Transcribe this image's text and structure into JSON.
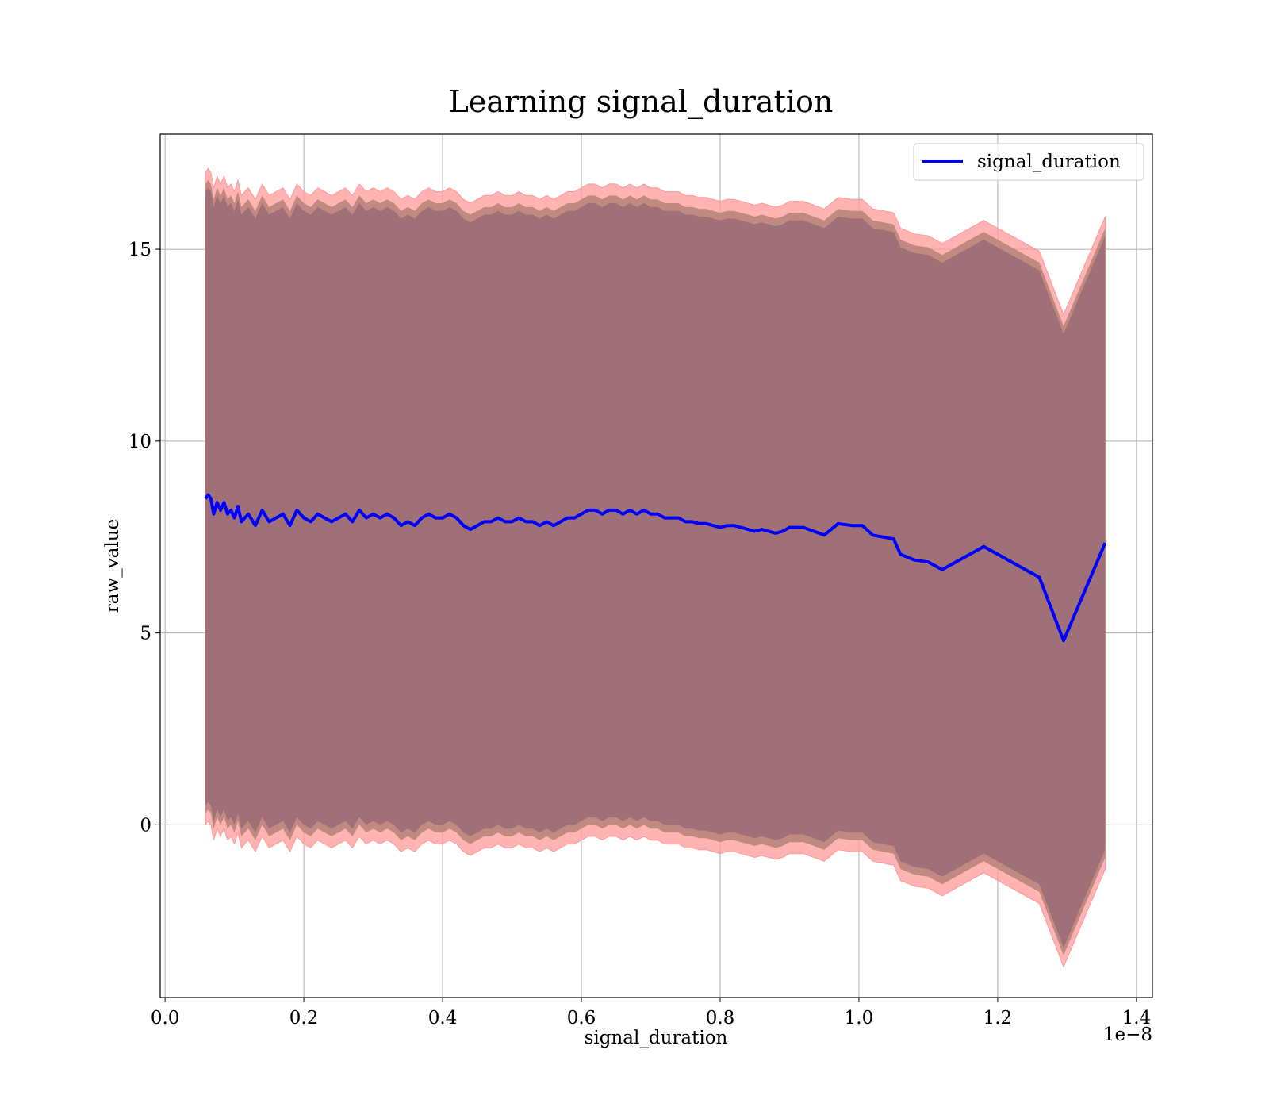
{
  "chart_data": {
    "type": "line",
    "title": "Learning signal_duration",
    "xlabel": "signal_duration",
    "ylabel": "raw_value",
    "x_offset_text": "1e−8",
    "xlim": [
      -0.007,
      1.423
    ],
    "ylim": [
      -4.5,
      18.0
    ],
    "x_ticks": [
      0.0,
      0.2,
      0.4,
      0.6,
      0.8,
      1.0,
      1.2,
      1.4
    ],
    "x_tick_labels": [
      "0.0",
      "0.2",
      "0.4",
      "0.6",
      "0.8",
      "1.0",
      "1.2",
      "1.4"
    ],
    "y_ticks": [
      0,
      5,
      10,
      15
    ],
    "y_tick_labels": [
      "0",
      "5",
      "10",
      "15"
    ],
    "grid": true,
    "legend": {
      "position": "top-right",
      "entries": [
        "signal_duration"
      ]
    },
    "colors": {
      "line": "#0000ff",
      "band_outer": "#ff9999",
      "band_mid": "#c08a80",
      "band_inner": "#a07078"
    },
    "x": [
      0.058,
      0.062,
      0.066,
      0.07,
      0.075,
      0.08,
      0.085,
      0.09,
      0.095,
      0.1,
      0.105,
      0.11,
      0.115,
      0.12,
      0.13,
      0.14,
      0.15,
      0.16,
      0.17,
      0.18,
      0.19,
      0.2,
      0.21,
      0.22,
      0.23,
      0.24,
      0.25,
      0.26,
      0.27,
      0.28,
      0.29,
      0.3,
      0.31,
      0.32,
      0.33,
      0.34,
      0.35,
      0.36,
      0.37,
      0.38,
      0.39,
      0.4,
      0.41,
      0.42,
      0.43,
      0.44,
      0.45,
      0.46,
      0.47,
      0.48,
      0.49,
      0.5,
      0.51,
      0.52,
      0.53,
      0.54,
      0.55,
      0.56,
      0.57,
      0.58,
      0.59,
      0.6,
      0.61,
      0.62,
      0.63,
      0.64,
      0.65,
      0.66,
      0.67,
      0.68,
      0.69,
      0.7,
      0.71,
      0.72,
      0.73,
      0.74,
      0.75,
      0.76,
      0.77,
      0.78,
      0.79,
      0.8,
      0.81,
      0.82,
      0.83,
      0.84,
      0.85,
      0.86,
      0.87,
      0.88,
      0.89,
      0.9,
      0.92,
      0.95,
      0.97,
      0.99,
      1.005,
      1.02,
      1.05,
      1.06,
      1.08,
      1.1,
      1.12,
      1.18,
      1.26,
      1.295,
      1.355
    ],
    "series": [
      {
        "name": "signal_duration",
        "mean": [
          8.5,
          8.6,
          8.5,
          8.1,
          8.4,
          8.2,
          8.4,
          8.1,
          8.2,
          8.0,
          8.3,
          7.9,
          8.0,
          8.1,
          7.8,
          8.2,
          7.9,
          8.0,
          8.1,
          7.8,
          8.2,
          8.0,
          7.9,
          8.1,
          8.0,
          7.9,
          8.0,
          8.1,
          7.9,
          8.2,
          8.0,
          8.1,
          8.0,
          8.1,
          8.0,
          7.8,
          7.9,
          7.8,
          8.0,
          8.1,
          8.0,
          8.0,
          8.1,
          8.0,
          7.8,
          7.7,
          7.8,
          7.9,
          7.9,
          8.0,
          7.9,
          7.9,
          8.0,
          7.9,
          7.9,
          7.8,
          7.9,
          7.8,
          7.9,
          8.0,
          8.0,
          8.1,
          8.2,
          8.2,
          8.1,
          8.2,
          8.2,
          8.1,
          8.2,
          8.1,
          8.2,
          8.1,
          8.1,
          8.0,
          8.0,
          8.0,
          7.9,
          7.9,
          7.85,
          7.85,
          7.8,
          7.75,
          7.8,
          7.8,
          7.75,
          7.7,
          7.65,
          7.7,
          7.65,
          7.6,
          7.65,
          7.75,
          7.75,
          7.55,
          7.85,
          7.8,
          7.8,
          7.55,
          7.45,
          7.05,
          6.9,
          6.85,
          6.65,
          7.25,
          6.45,
          4.8,
          7.35
        ],
        "half_width_inner": 8.0,
        "half_width_mid": 8.2,
        "half_width_outer": 8.5
      }
    ]
  }
}
